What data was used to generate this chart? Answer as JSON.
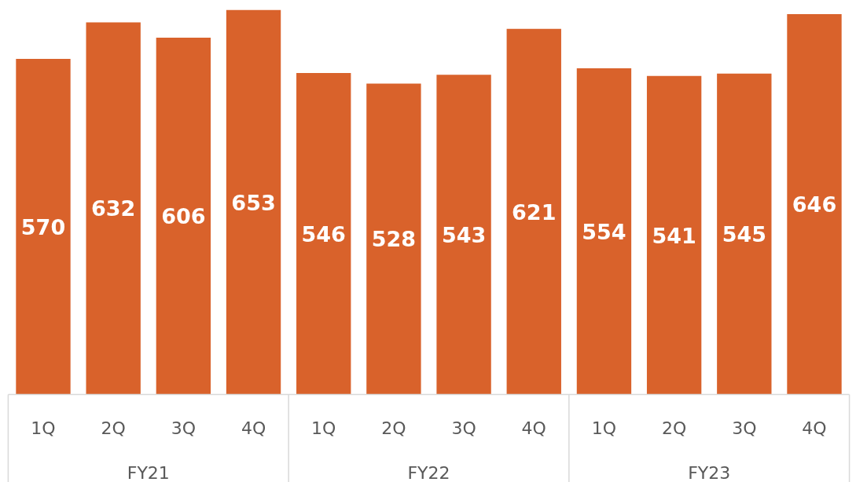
{
  "chart_data": {
    "type": "bar",
    "categories": [
      "1Q",
      "2Q",
      "3Q",
      "4Q",
      "1Q",
      "2Q",
      "3Q",
      "4Q",
      "1Q",
      "2Q",
      "3Q",
      "4Q"
    ],
    "values": [
      570,
      632,
      606,
      653,
      546,
      528,
      543,
      621,
      554,
      541,
      545,
      646
    ],
    "color": "#d9622b",
    "data_labels": true,
    "annotations": [
      "FY21",
      "FY22",
      "FY23"
    ]
  }
}
